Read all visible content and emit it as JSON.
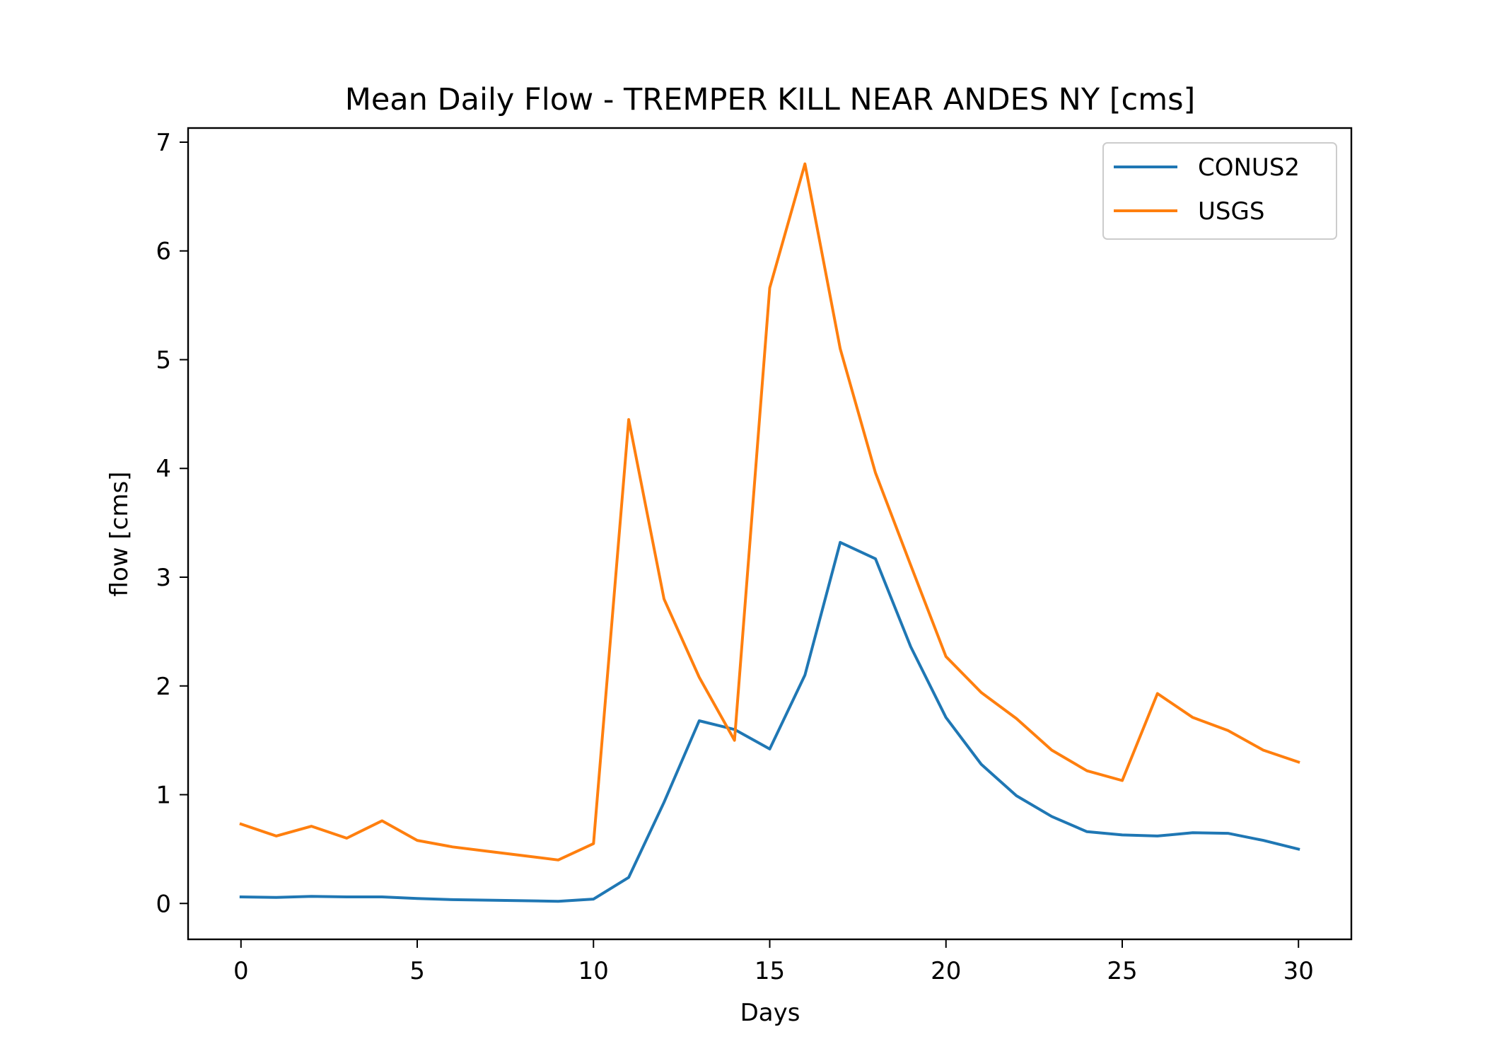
{
  "chart_data": {
    "type": "line",
    "title": "Mean Daily Flow - TREMPER KILL NEAR ANDES NY [cms]",
    "xlabel": "Days",
    "ylabel": "flow [cms]",
    "xlim": [
      -1.5,
      31.5
    ],
    "ylim": [
      -0.33,
      7.13
    ],
    "xticks": [
      0,
      5,
      10,
      15,
      20,
      25,
      30
    ],
    "yticks": [
      0,
      1,
      2,
      3,
      4,
      5,
      6,
      7
    ],
    "grid": false,
    "legend": "top-right",
    "x": [
      0,
      1,
      2,
      3,
      4,
      5,
      6,
      7,
      8,
      9,
      10,
      11,
      12,
      13,
      14,
      15,
      16,
      17,
      18,
      19,
      20,
      21,
      22,
      23,
      24,
      25,
      26,
      27,
      28,
      29,
      30
    ],
    "series": [
      {
        "name": "CONUS2",
        "color": "#1f77b4",
        "values": [
          0.06,
          0.055,
          0.065,
          0.06,
          0.06,
          0.045,
          0.035,
          0.03,
          0.025,
          0.02,
          0.04,
          0.24,
          0.93,
          1.68,
          1.6,
          1.42,
          2.1,
          3.32,
          3.17,
          2.36,
          1.71,
          1.28,
          0.99,
          0.8,
          0.66,
          0.63,
          0.62,
          0.65,
          0.645,
          0.58,
          0.5
        ]
      },
      {
        "name": "USGS",
        "color": "#ff7f0e",
        "values": [
          0.73,
          0.62,
          0.71,
          0.6,
          0.76,
          0.58,
          0.52,
          0.48,
          0.44,
          0.4,
          0.55,
          4.45,
          2.8,
          2.08,
          1.5,
          5.66,
          6.8,
          5.1,
          3.96,
          3.11,
          2.27,
          1.94,
          1.7,
          1.41,
          1.22,
          1.13,
          1.93,
          1.71,
          1.59,
          1.41,
          1.3
        ]
      }
    ]
  }
}
